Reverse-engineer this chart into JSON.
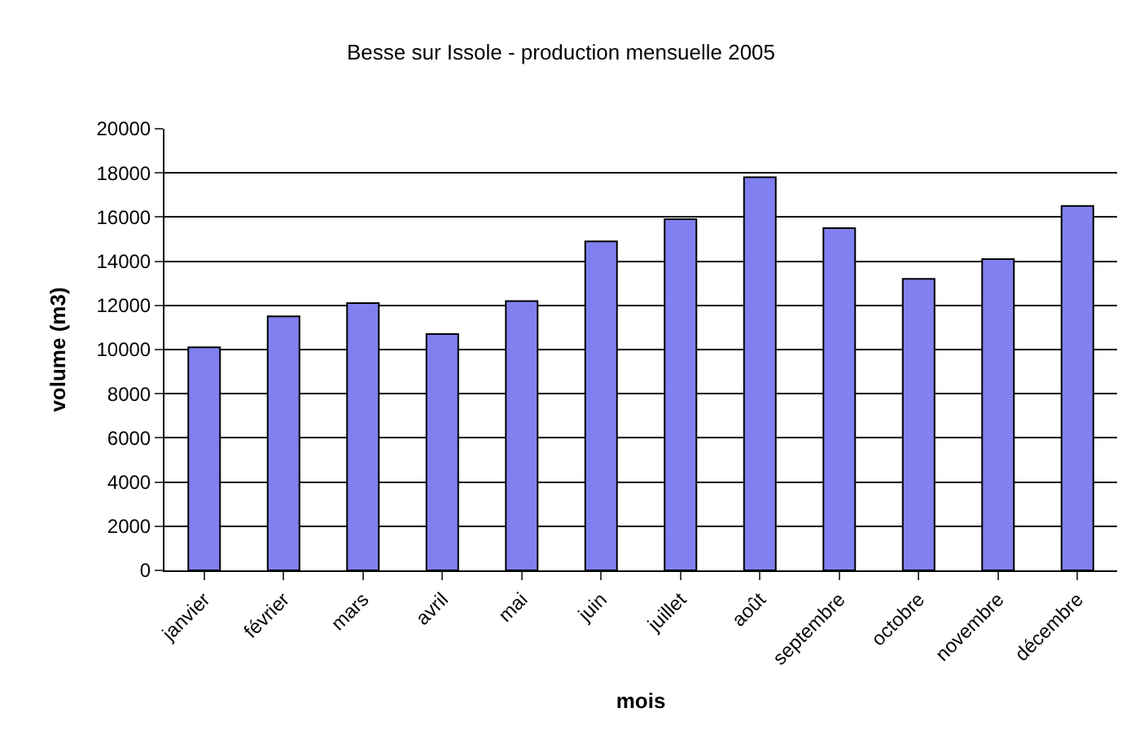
{
  "chart_data": {
    "type": "bar",
    "title": "Besse sur Issole - production mensuelle 2005",
    "xlabel": "mois",
    "ylabel": "volume (m3)",
    "categories": [
      "janvier",
      "février",
      "mars",
      "avril",
      "mai",
      "juin",
      "juillet",
      "août",
      "septembre",
      "octobre",
      "novembre",
      "décembre"
    ],
    "values": [
      10100,
      11500,
      12100,
      10700,
      12200,
      14900,
      15900,
      17800,
      15500,
      13200,
      14100,
      16500
    ],
    "color": "#8080f0",
    "ylim": [
      0,
      20000
    ],
    "yticks": [
      0,
      2000,
      4000,
      6000,
      8000,
      10000,
      12000,
      14000,
      16000,
      18000,
      20000
    ],
    "grid": "y"
  }
}
